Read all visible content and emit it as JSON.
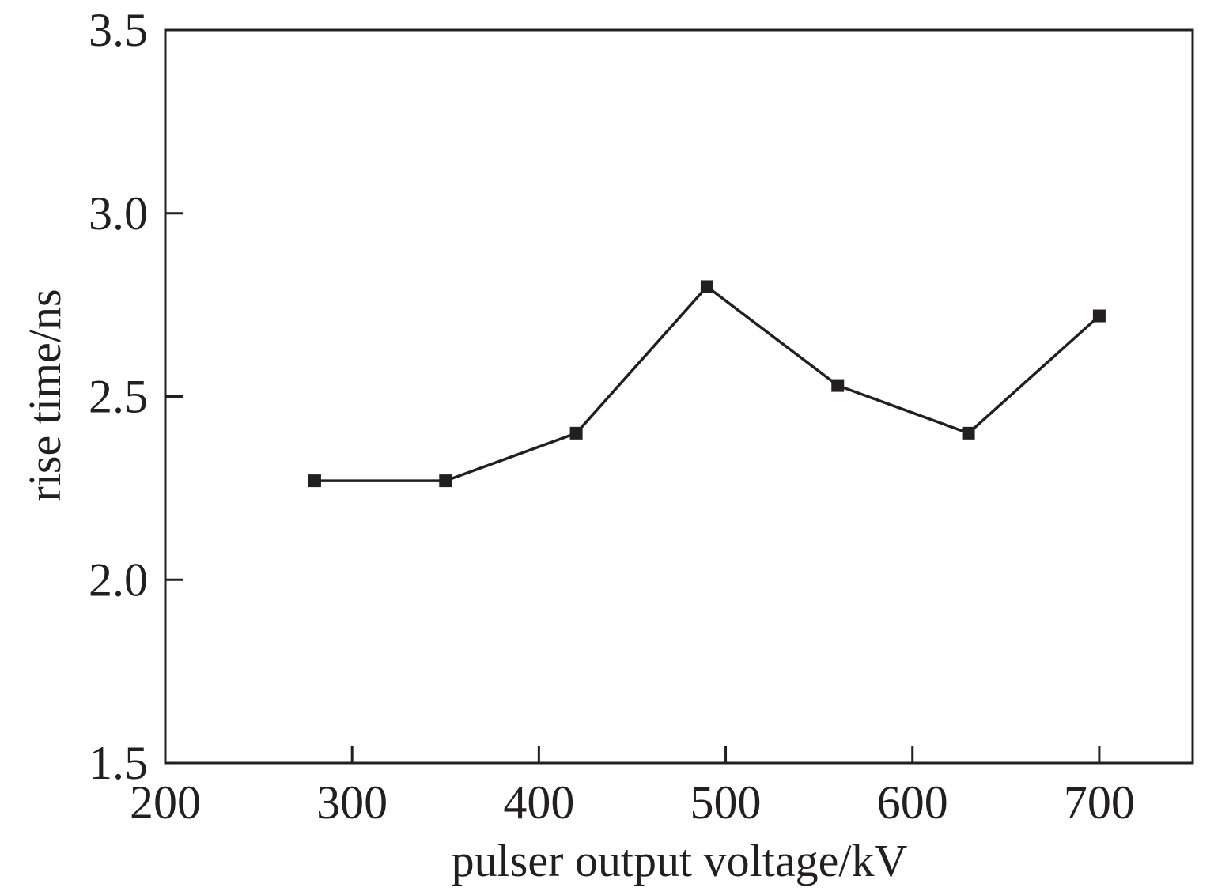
{
  "chart_data": {
    "type": "line",
    "title": "",
    "xlabel": "pulser output voltage/kV",
    "ylabel": "rise time/ns",
    "xlim": [
      200,
      750
    ],
    "ylim": [
      1.5,
      3.5
    ],
    "x_ticks": [
      200,
      300,
      400,
      500,
      600,
      700
    ],
    "y_ticks": [
      1.5,
      2.0,
      2.5,
      3.0,
      3.5
    ],
    "x_tick_labels": [
      "200",
      "300",
      "400",
      "500",
      "600",
      "700"
    ],
    "y_tick_labels": [
      "1.5",
      "2.0",
      "2.5",
      "3.0",
      "3.5"
    ],
    "grid": false,
    "legend": false,
    "series": [
      {
        "marker": "square",
        "color": "#231f20",
        "x": [
          280,
          350,
          420,
          490,
          560,
          630,
          700
        ],
        "y": [
          2.27,
          2.27,
          2.4,
          2.8,
          2.53,
          2.4,
          2.72
        ]
      }
    ]
  }
}
